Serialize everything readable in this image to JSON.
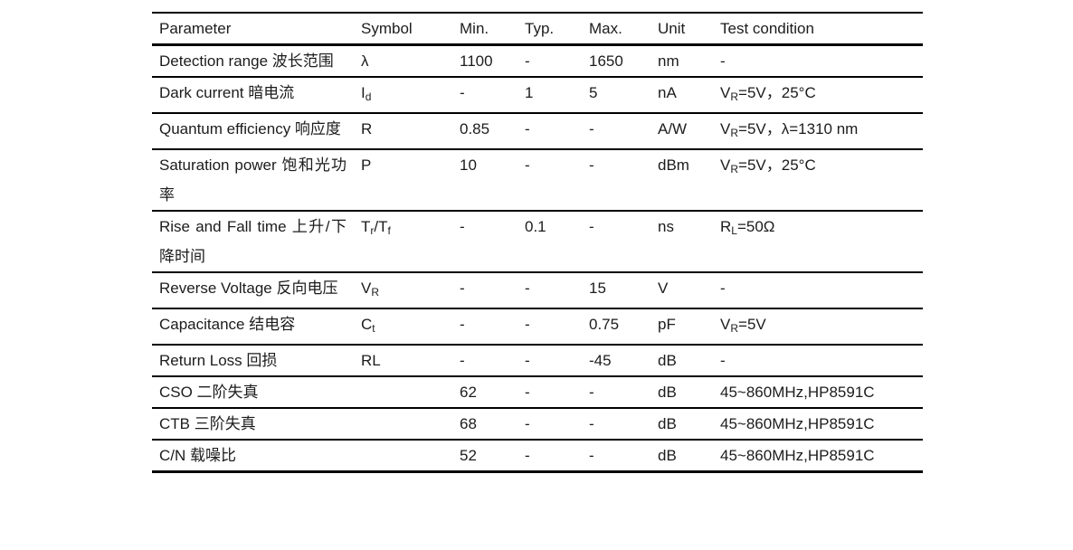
{
  "page": {
    "background": "#ffffff",
    "text_color": "#1c1c1e",
    "rule_color": "#000000"
  },
  "table": {
    "columns": [
      {
        "key": "parameter",
        "label": "Parameter"
      },
      {
        "key": "symbol",
        "label": "Symbol"
      },
      {
        "key": "min",
        "label": "Min."
      },
      {
        "key": "typ",
        "label": "Typ."
      },
      {
        "key": "max",
        "label": "Max."
      },
      {
        "key": "unit",
        "label": "Unit"
      },
      {
        "key": "condition",
        "label": "Test condition"
      }
    ],
    "rows": [
      {
        "parameter": "Detection range 波长范围",
        "symbol": [
          {
            "t": "λ"
          }
        ],
        "min": "1100",
        "typ": "-",
        "max": "1650",
        "unit": "nm",
        "condition": [
          {
            "t": "-"
          }
        ]
      },
      {
        "parameter": "Dark current 暗电流",
        "symbol": [
          {
            "t": "I"
          },
          {
            "t": "d",
            "sub": true
          }
        ],
        "min": "-",
        "typ": "1",
        "max": "5",
        "unit": "nA",
        "condition": [
          {
            "t": "V"
          },
          {
            "t": "R",
            "sub": true
          },
          {
            "t": "=5V，25°C"
          }
        ]
      },
      {
        "parameter": "Quantum efficiency 响应度",
        "symbol": [
          {
            "t": "R"
          }
        ],
        "min": "0.85",
        "typ": "-",
        "max": "-",
        "unit": "A/W",
        "condition": [
          {
            "t": "V"
          },
          {
            "t": "R",
            "sub": true
          },
          {
            "t": "=5V，λ=1310 nm"
          }
        ]
      },
      {
        "parameter": "Saturation power 饱和光功率",
        "symbol": [
          {
            "t": "P"
          }
        ],
        "min": "10",
        "typ": "-",
        "max": "-",
        "unit": "dBm",
        "condition": [
          {
            "t": "V"
          },
          {
            "t": "R",
            "sub": true
          },
          {
            "t": "=5V，25°C"
          }
        ]
      },
      {
        "parameter": "Rise and Fall time 上升/下降时间",
        "symbol": [
          {
            "t": "T"
          },
          {
            "t": "r",
            "sub": true
          },
          {
            "t": "/T"
          },
          {
            "t": "f",
            "sub": true
          }
        ],
        "min": "-",
        "typ": "0.1",
        "max": "-",
        "unit": "ns",
        "condition": [
          {
            "t": "R"
          },
          {
            "t": "L",
            "sub": true
          },
          {
            "t": "=50Ω"
          }
        ]
      },
      {
        "parameter": "Reverse Voltage 反向电压",
        "symbol": [
          {
            "t": "V"
          },
          {
            "t": "R",
            "sub": true
          }
        ],
        "min": "-",
        "typ": "-",
        "max": "15",
        "unit": "V",
        "condition": [
          {
            "t": "-"
          }
        ]
      },
      {
        "parameter": "Capacitance 结电容",
        "symbol": [
          {
            "t": "C"
          },
          {
            "t": "t",
            "sub": true
          }
        ],
        "min": "-",
        "typ": "-",
        "max": "0.75",
        "unit": "pF",
        "condition": [
          {
            "t": "V"
          },
          {
            "t": "R",
            "sub": true
          },
          {
            "t": "=5V"
          }
        ]
      },
      {
        "parameter": "Return Loss 回损",
        "symbol": [
          {
            "t": "RL"
          }
        ],
        "min": "-",
        "typ": "-",
        "max": "-45",
        "unit": "dB",
        "condition": [
          {
            "t": "-"
          }
        ]
      },
      {
        "parameter": "CSO 二阶失真",
        "symbol": [],
        "min": "62",
        "typ": "-",
        "max": "-",
        "unit": "dB",
        "condition": [
          {
            "t": "45~860MHz,HP8591C"
          }
        ]
      },
      {
        "parameter": "CTB 三阶失真",
        "symbol": [],
        "min": "68",
        "typ": "-",
        "max": "-",
        "unit": "dB",
        "condition": [
          {
            "t": "45~860MHz,HP8591C"
          }
        ]
      },
      {
        "parameter": "C/N 载噪比",
        "symbol": [],
        "min": "52",
        "typ": "-",
        "max": "-",
        "unit": "dB",
        "condition": [
          {
            "t": "45~860MHz,HP8591C"
          }
        ]
      }
    ]
  }
}
